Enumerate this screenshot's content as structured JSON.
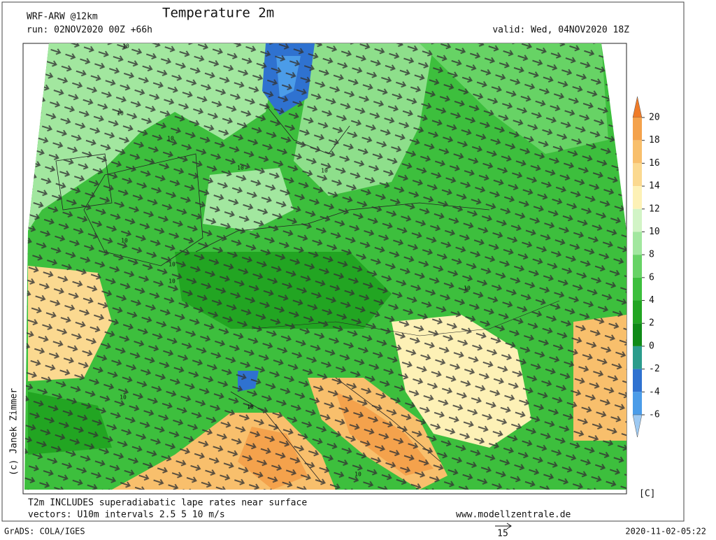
{
  "header": {
    "model": "WRF-ARW @12km",
    "title": "Temperature 2m",
    "run": "run: 02NOV2020 00Z +66h",
    "valid": "valid: Wed, 04NOV2020 18Z"
  },
  "credit": "(c) Janek Zimmer",
  "colorbar": {
    "ticks": [
      20,
      18,
      16,
      14,
      12,
      10,
      8,
      6,
      4,
      2,
      0,
      -2,
      -4,
      -6
    ],
    "colors": [
      "#ef7b28",
      "#f4a24c",
      "#f8bf6c",
      "#fbd990",
      "#fdf1b6",
      "#d2f4c6",
      "#a2e79f",
      "#67d365",
      "#3dbf3d",
      "#22a522",
      "#0f8a17",
      "#2b9c8c",
      "#2f72d0",
      "#4b9ce8",
      "#9dc9f2"
    ],
    "unit": "[C]"
  },
  "contour_labels": [
    10,
    10,
    10,
    10,
    10,
    10,
    10,
    10,
    10,
    10,
    10,
    10
  ],
  "footer": {
    "note1": "T2m INCLUDES superadiabatic lape rates near surface",
    "note2": "vectors: U10m intervals 2.5 5 10 m/s",
    "site": "www.modellzentrale.de",
    "software": "GrADS: COLA/IGES",
    "timestamp": "2020-11-02-05:22",
    "vector_ref": 15
  }
}
